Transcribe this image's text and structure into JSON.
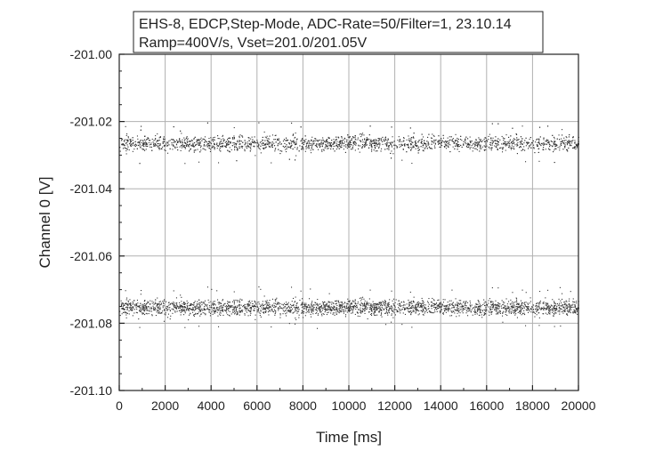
{
  "chart_data": {
    "type": "scatter",
    "title_lines": [
      "EHS-8, EDCP,Step-Mode, ADC-Rate=50/Filter=1, 23.10.14",
      "Ramp=400V/s, Vset=201.0/201.05V"
    ],
    "xlabel": "Time [ms]",
    "ylabel": "Channel 0 [V]",
    "xlim": [
      0,
      20000
    ],
    "ylim": [
      -201.1,
      -201.0
    ],
    "x_ticks": [
      0,
      2000,
      4000,
      6000,
      8000,
      10000,
      12000,
      14000,
      16000,
      18000,
      20000
    ],
    "x_tick_labels": [
      "0",
      "2000",
      "4000",
      "6000",
      "8000",
      "10000",
      "12000",
      "14000",
      "16000",
      "18000",
      "20000"
    ],
    "y_ticks": [
      -201.1,
      -201.08,
      -201.06,
      -201.04,
      -201.02,
      -201.0
    ],
    "y_tick_labels": [
      "-201.10",
      "-201.08",
      "-201.06",
      "-201.04",
      "-201.02",
      "-201.00"
    ],
    "grid": true,
    "marker_color": "#333333",
    "series": [
      {
        "x_range": [
          0,
          20000
        ],
        "center": -201.0752,
        "spread": 0.0025,
        "points": 2600
      },
      {
        "x_range": [
          0,
          20000
        ],
        "center": -201.0264,
        "spread": 0.0025,
        "points": 2600
      }
    ]
  }
}
